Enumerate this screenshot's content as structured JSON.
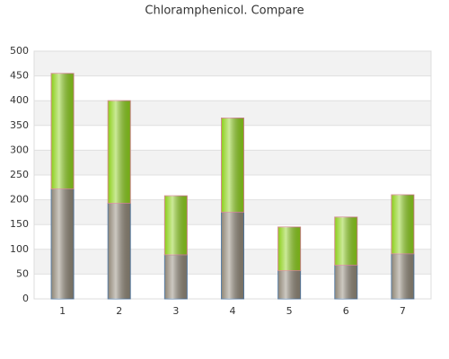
{
  "chart_data": {
    "type": "stacked_bar",
    "title": "Chloramphenicol. Compare",
    "categories": [
      "1",
      "2",
      "3",
      "4",
      "5",
      "6",
      "7"
    ],
    "series": [
      {
        "color": "#8f8676",
        "values": [
          222,
          193,
          89,
          175,
          57,
          68,
          91
        ]
      },
      {
        "color": "#8ccf1a",
        "values": [
          233,
          207,
          119,
          190,
          88,
          97,
          119
        ]
      }
    ],
    "ylim": [
      0,
      500
    ],
    "yticks": [
      0,
      50,
      100,
      150,
      200,
      250,
      300,
      350,
      400,
      450,
      500
    ],
    "grid": true
  }
}
